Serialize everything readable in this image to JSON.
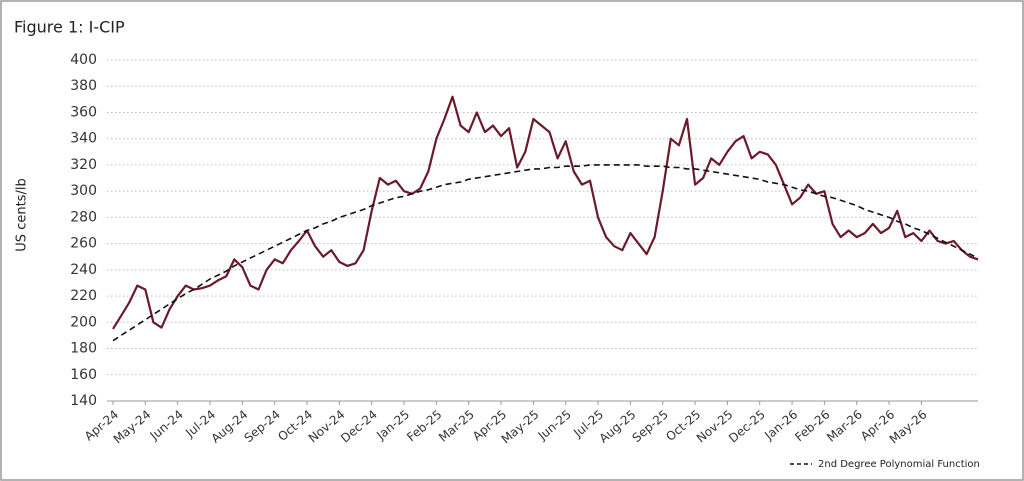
{
  "chart_data": {
    "type": "line",
    "title": "Figure 1: I-CIP",
    "y_label": "US cents/lb",
    "categories": [
      "Apr-24",
      null,
      null,
      null,
      "May-24",
      null,
      null,
      null,
      "Jun-24",
      null,
      null,
      null,
      "Jul-24",
      null,
      null,
      null,
      "Aug-24",
      null,
      null,
      null,
      "Sep-24",
      null,
      null,
      null,
      "Oct-24",
      null,
      null,
      null,
      "Nov-24",
      null,
      null,
      null,
      "Dec-24",
      null,
      null,
      null,
      "Jan-25",
      null,
      null,
      null,
      "Feb-25",
      null,
      null,
      null,
      "Mar-25",
      null,
      null,
      null,
      "Apr-25",
      null,
      null,
      null,
      "May-25",
      null,
      null,
      null,
      "Jun-25",
      null,
      null,
      null,
      "Jul-25",
      null,
      null,
      null,
      "Aug-25",
      null,
      null,
      null,
      "Sep-25",
      null,
      null,
      null,
      "Oct-25",
      null,
      null,
      null,
      "Nov-25",
      null,
      null,
      null,
      "Dec-25",
      null,
      null,
      null,
      "Jan-26",
      null,
      null,
      null,
      "Feb-26",
      null,
      null,
      null,
      "Mar-26",
      null,
      null,
      null,
      "Apr-26",
      null,
      null,
      null,
      "May-26",
      null,
      null,
      null,
      null,
      null,
      null,
      null
    ],
    "series": [
      {
        "color": "#6b1a2a",
        "dash": false,
        "values": [
          195,
          205,
          215,
          228,
          225,
          200,
          196,
          210,
          220,
          228,
          225,
          226,
          228,
          232,
          235,
          248,
          242,
          228,
          225,
          240,
          248,
          245,
          255,
          262,
          270,
          258,
          250,
          255,
          246,
          243,
          245,
          255,
          285,
          310,
          305,
          308,
          300,
          298,
          302,
          315,
          340,
          355,
          372,
          350,
          345,
          360,
          345,
          350,
          342,
          348,
          318,
          330,
          355,
          350,
          345,
          325,
          338,
          315,
          305,
          308,
          280,
          265,
          258,
          255,
          268,
          260,
          252,
          265,
          300,
          340,
          335,
          355,
          305,
          310,
          325,
          320,
          330,
          338,
          342,
          325,
          330,
          328,
          320,
          305,
          290,
          295,
          305,
          298,
          300,
          275,
          265,
          270,
          265,
          268,
          275,
          268,
          272,
          285,
          265,
          268,
          262,
          270,
          262,
          260,
          262,
          255,
          250,
          248
        ]
      },
      {
        "name": "2nd Degree Polynomial Function",
        "color": "#111111",
        "dash": true,
        "values": [
          186,
          190,
          194,
          198,
          202,
          206,
          210,
          214,
          218,
          222,
          225,
          229,
          233,
          236,
          239,
          243,
          246,
          249,
          252,
          255,
          258,
          261,
          264,
          267,
          270,
          272,
          275,
          277,
          280,
          282,
          284,
          286,
          289,
          291,
          293,
          295,
          296,
          298,
          300,
          301,
          303,
          305,
          306,
          307,
          309,
          310,
          311,
          312,
          313,
          314,
          315,
          316,
          317,
          317,
          318,
          318,
          319,
          319,
          319,
          320,
          320,
          320,
          320,
          320,
          320,
          320,
          319,
          319,
          319,
          318,
          318,
          317,
          317,
          316,
          315,
          314,
          313,
          312,
          311,
          310,
          309,
          307,
          306,
          305,
          303,
          301,
          300,
          298,
          296,
          295,
          293,
          291,
          289,
          286,
          284,
          282,
          280,
          277,
          275,
          272,
          270,
          267,
          264,
          261,
          258,
          255,
          252,
          249
        ]
      }
    ],
    "ylim": [
      140,
      400
    ],
    "yticks": [
      140,
      160,
      180,
      200,
      220,
      240,
      260,
      280,
      300,
      320,
      340,
      360,
      380,
      400
    ],
    "grid": true,
    "legend": "bottom-right"
  }
}
